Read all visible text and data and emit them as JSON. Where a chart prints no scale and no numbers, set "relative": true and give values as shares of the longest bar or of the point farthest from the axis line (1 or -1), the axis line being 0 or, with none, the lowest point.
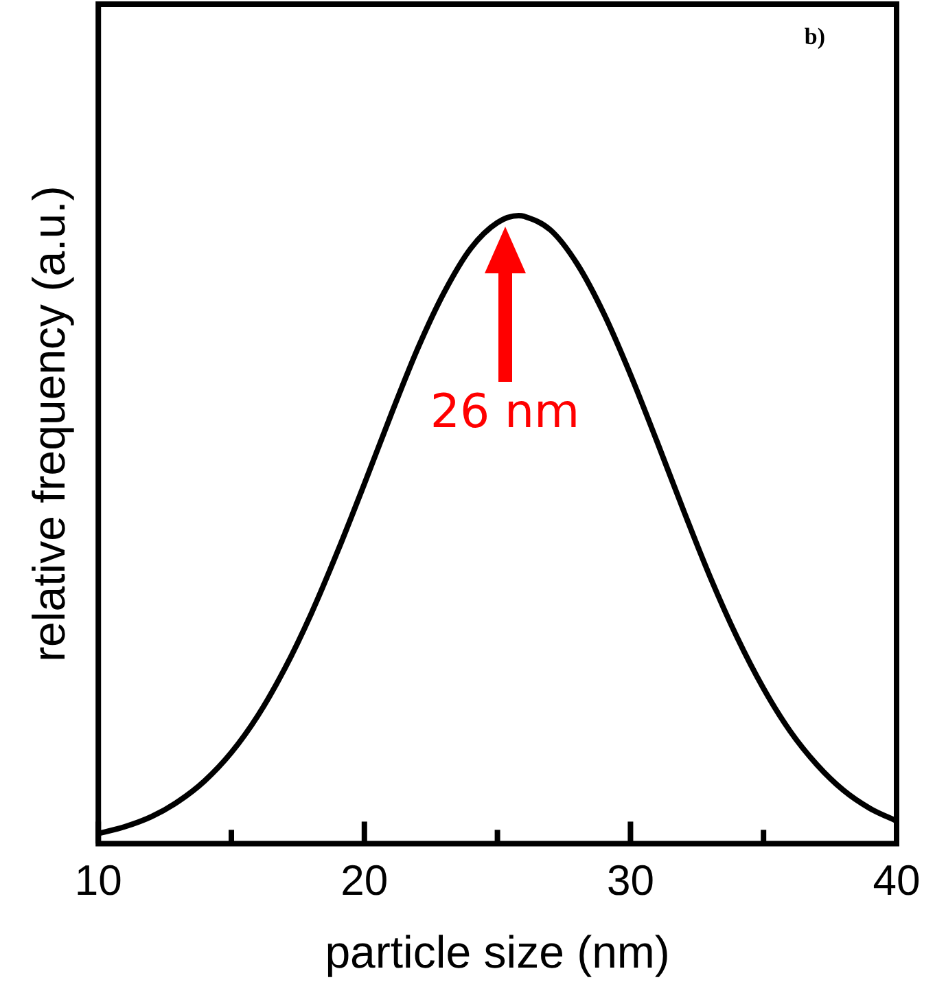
{
  "chart_data": {
    "type": "line",
    "xlabel": "particle size (nm)",
    "ylabel": "relative frequency (a.u.)",
    "relative": true,
    "grid": false,
    "legend": false,
    "marker": "none",
    "line_style": "solid",
    "xlim": [
      10,
      40
    ],
    "xticks": [
      10,
      {
        "value": 15,
        "label": null
      },
      20,
      {
        "value": 25,
        "label": null
      },
      30,
      {
        "value": 35,
        "label": null
      },
      40
    ],
    "x": [
      10,
      11,
      12,
      13,
      14,
      15,
      16,
      17,
      18,
      19,
      20,
      21,
      22,
      23,
      24,
      25,
      25.8,
      26,
      27,
      28,
      29,
      30,
      31,
      32,
      33,
      34,
      35,
      36,
      37,
      38,
      39,
      40
    ],
    "series": [
      {
        "color": "#000000",
        "values": [
          0.016,
          0.027,
          0.043,
          0.067,
          0.1,
          0.145,
          0.204,
          0.278,
          0.366,
          0.466,
          0.573,
          0.683,
          0.788,
          0.878,
          0.948,
          0.989,
          1,
          0.999,
          0.977,
          0.923,
          0.844,
          0.747,
          0.64,
          0.53,
          0.424,
          0.329,
          0.247,
          0.179,
          0.126,
          0.085,
          0.056,
          0.036
        ]
      }
    ],
    "annotations": [
      "b)",
      "26 nm"
    ]
  }
}
